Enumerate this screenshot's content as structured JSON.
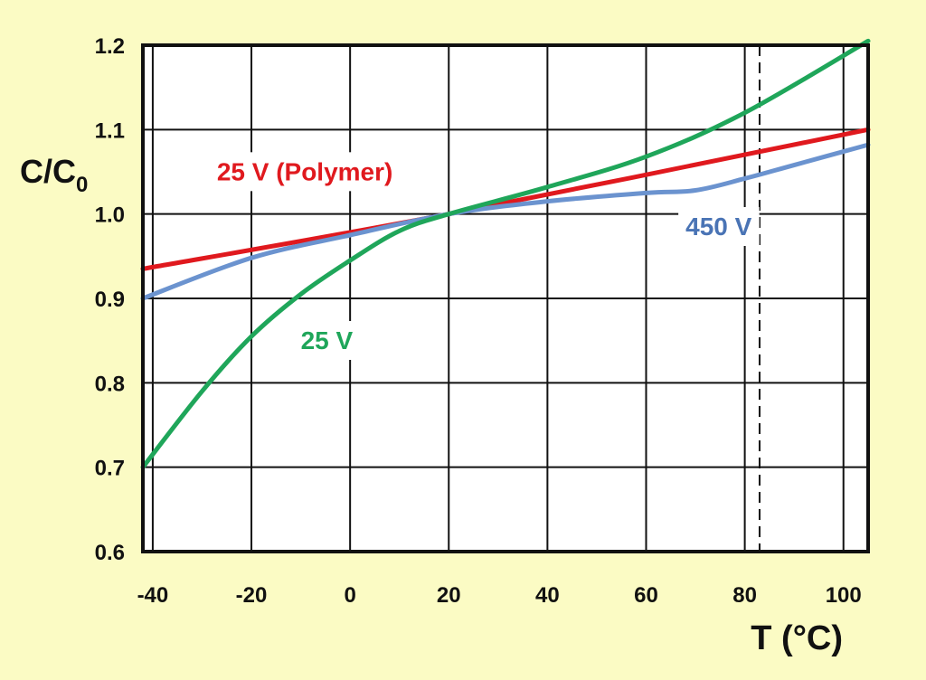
{
  "chart_data": {
    "type": "line",
    "xlabel": "T (°C)",
    "ylabel": {
      "main": "C/C",
      "sub": "0"
    },
    "xlim": [
      -42,
      105
    ],
    "ylim": [
      0.6,
      1.2
    ],
    "x_ticks": [
      -40,
      -20,
      0,
      20,
      40,
      60,
      80,
      100
    ],
    "y_ticks": [
      0.6,
      0.7,
      0.8,
      0.9,
      1.0,
      1.1,
      1.2
    ],
    "x_tick_labels": [
      "-40",
      "-20",
      "0",
      "20",
      "40",
      "60",
      "80",
      "100"
    ],
    "y_tick_labels": [
      "0.6",
      "0.7",
      "0.8",
      "0.9",
      "1.0",
      "1.1",
      "1.2"
    ],
    "grid": true,
    "vertical_marker": {
      "x": 83,
      "style": "dashed"
    },
    "series": [
      {
        "name": "25 V (Polymer)",
        "color": "#e0191e",
        "x": [
          -42,
          20,
          105
        ],
        "y": [
          0.935,
          1.0,
          1.1
        ]
      },
      {
        "name": "450 V",
        "color": "#6b93cf",
        "x": [
          -42,
          -20,
          0,
          20,
          40,
          60,
          70,
          80,
          90,
          105
        ],
        "y": [
          0.9,
          0.948,
          0.975,
          1.0,
          1.015,
          1.025,
          1.028,
          1.042,
          1.058,
          1.082
        ]
      },
      {
        "name": "25 V",
        "color": "#1fa65a",
        "x": [
          -42,
          -30,
          -20,
          -10,
          0,
          10,
          20,
          40,
          60,
          80,
          105
        ],
        "y": [
          0.7,
          0.79,
          0.855,
          0.905,
          0.945,
          0.98,
          1.0,
          1.032,
          1.068,
          1.12,
          1.205
        ]
      }
    ],
    "annotations": [
      {
        "text": "25 V (Polymer)",
        "color": "#e0191e",
        "x": -27,
        "y": 1.04
      },
      {
        "text": "450 V",
        "color": "#4a74b5",
        "x": 68,
        "y": 0.975
      },
      {
        "text": "25 V",
        "color": "#1fa65a",
        "x": -10,
        "y": 0.84
      }
    ]
  }
}
